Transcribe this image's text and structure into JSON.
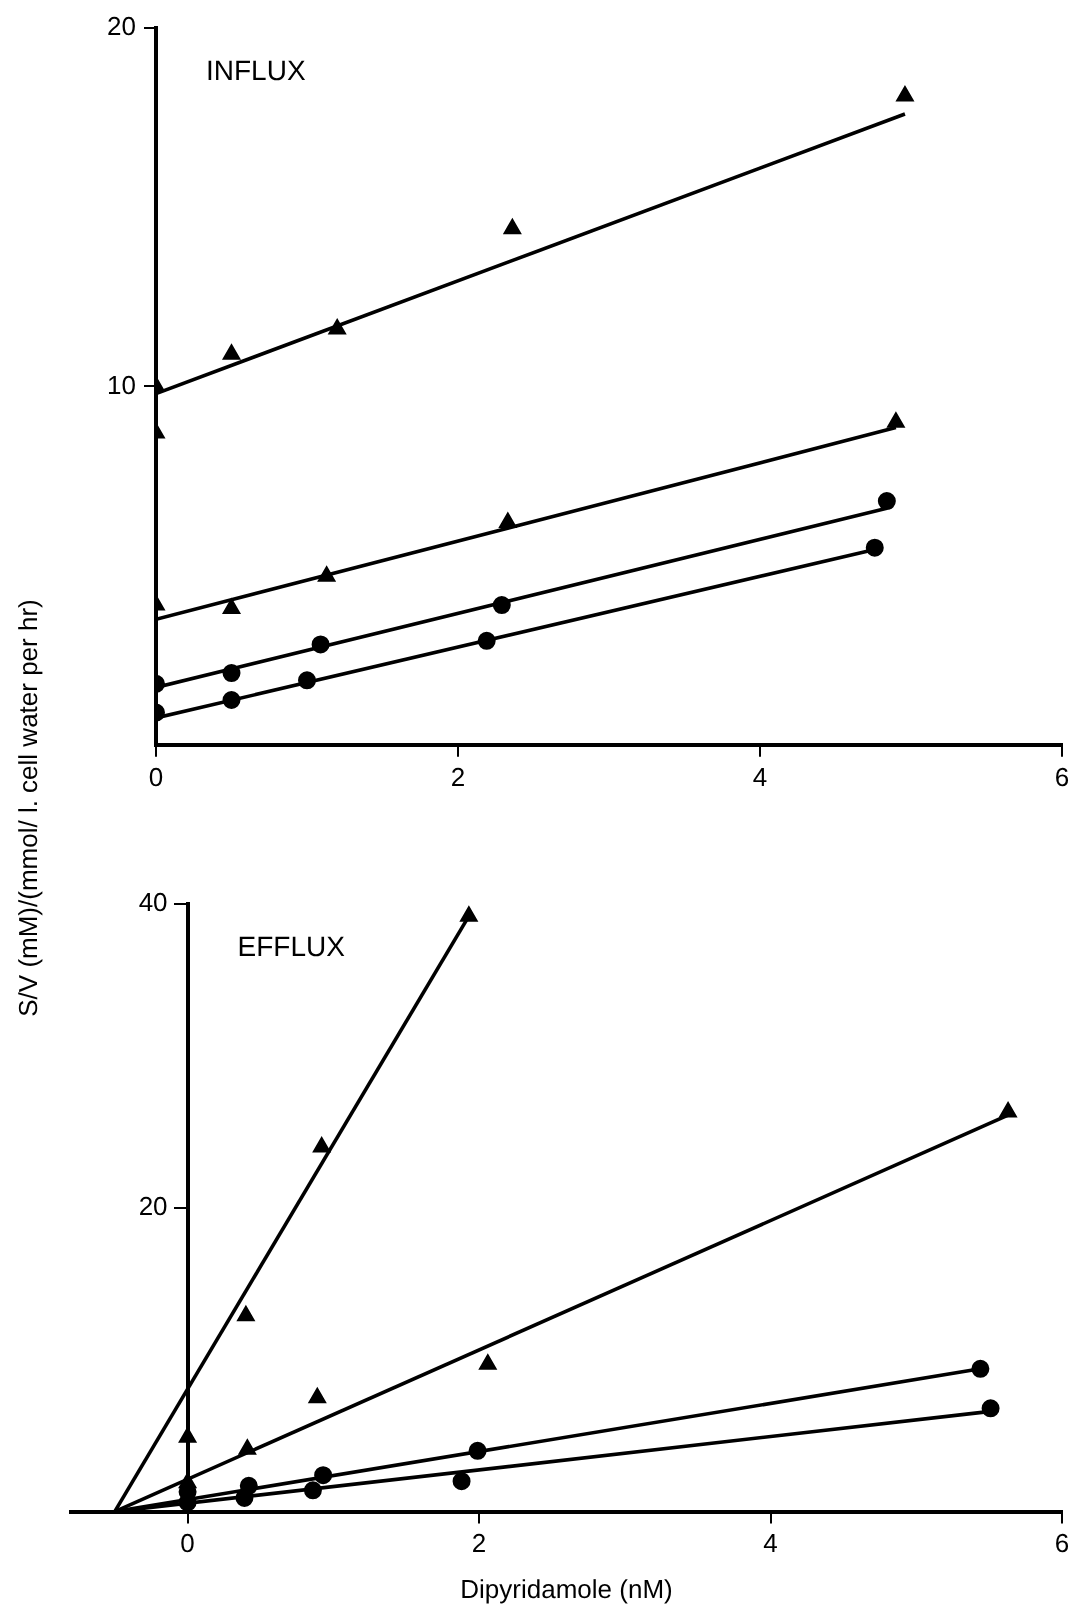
{
  "chart_data": [
    {
      "type": "scatter",
      "ylabel": "S/V (mM)/(mmol/ l. cell water per hr)",
      "annotations": [
        "INFLUX"
      ],
      "xlim": [
        0,
        6
      ],
      "xticks": [
        0,
        2,
        4,
        6
      ],
      "ylim": [
        0,
        20
      ],
      "yticks": [
        10,
        20
      ],
      "grid": false,
      "legend": false,
      "series": [
        {
          "marker": "triangle",
          "color": "#000000",
          "x": [
            0,
            0,
            0.5,
            1.2,
            2.36,
            4.96
          ],
          "values": [
            10.0,
            8.7,
            10.9,
            11.6,
            14.4,
            18.1
          ]
        },
        {
          "marker": "triangle",
          "color": "#000000",
          "x": [
            0,
            0.5,
            1.13,
            2.33,
            4.9
          ],
          "values": [
            3.9,
            3.8,
            4.7,
            6.2,
            9.0
          ]
        },
        {
          "marker": "circle",
          "color": "#000000",
          "x": [
            0,
            0.5,
            1.09,
            2.29,
            4.84
          ],
          "values": [
            1.7,
            2.0,
            2.8,
            3.9,
            6.8
          ]
        },
        {
          "marker": "circle",
          "color": "#000000",
          "x": [
            0,
            0.5,
            1.0,
            2.19,
            4.76
          ],
          "values": [
            0.9,
            1.25,
            1.8,
            2.9,
            5.5
          ]
        },
        {
          "type": "line",
          "marker": "none",
          "color": "#000000",
          "x": [
            0,
            4.96
          ],
          "values": [
            9.8,
            17.6
          ]
        },
        {
          "type": "line",
          "marker": "none",
          "color": "#000000",
          "x": [
            0,
            4.9
          ],
          "values": [
            3.5,
            8.85
          ]
        },
        {
          "type": "line",
          "marker": "none",
          "color": "#000000",
          "x": [
            0,
            4.84
          ],
          "values": [
            1.6,
            6.6
          ]
        },
        {
          "type": "line",
          "marker": "none",
          "color": "#000000",
          "x": [
            0,
            4.76
          ],
          "values": [
            0.75,
            5.45
          ]
        }
      ]
    },
    {
      "type": "scatter",
      "xlabel": "Dipyridamole (nM)",
      "annotations": [
        "EFFLUX"
      ],
      "xlim": [
        -0.8,
        6
      ],
      "xticks": [
        0,
        2,
        4,
        6
      ],
      "ylim": [
        0,
        40
      ],
      "yticks": [
        20,
        40
      ],
      "grid": false,
      "legend": false,
      "series": [
        {
          "marker": "triangle",
          "color": "#000000",
          "x": [
            0,
            0.4,
            0.92,
            1.93
          ],
          "values": [
            4.9,
            12.9,
            24.0,
            39.2
          ]
        },
        {
          "marker": "triangle",
          "color": "#000000",
          "x": [
            0,
            0.41,
            0.89,
            2.06,
            5.63
          ],
          "values": [
            1.9,
            4.1,
            7.5,
            9.7,
            26.3
          ]
        },
        {
          "marker": "circle",
          "color": "#000000",
          "x": [
            0,
            0.42,
            0.93,
            1.99,
            5.44
          ],
          "values": [
            1.3,
            1.7,
            2.4,
            4.0,
            9.4
          ]
        },
        {
          "marker": "circle",
          "color": "#000000",
          "x": [
            0,
            0.39,
            0.86,
            1.88,
            5.51
          ],
          "values": [
            0.6,
            0.9,
            1.4,
            2.0,
            6.8
          ]
        },
        {
          "type": "line",
          "marker": "none",
          "color": "#000000",
          "x": [
            -0.5,
            1.93
          ],
          "values": [
            0,
            39.2
          ]
        },
        {
          "type": "line",
          "marker": "none",
          "color": "#000000",
          "x": [
            -0.5,
            5.63
          ],
          "values": [
            0,
            26.1
          ]
        },
        {
          "type": "line",
          "marker": "none",
          "color": "#000000",
          "x": [
            -0.5,
            5.44
          ],
          "values": [
            0,
            9.4
          ]
        },
        {
          "type": "line",
          "marker": "none",
          "color": "#000000",
          "x": [
            -0.5,
            5.51
          ],
          "values": [
            0,
            6.6
          ]
        }
      ]
    }
  ]
}
